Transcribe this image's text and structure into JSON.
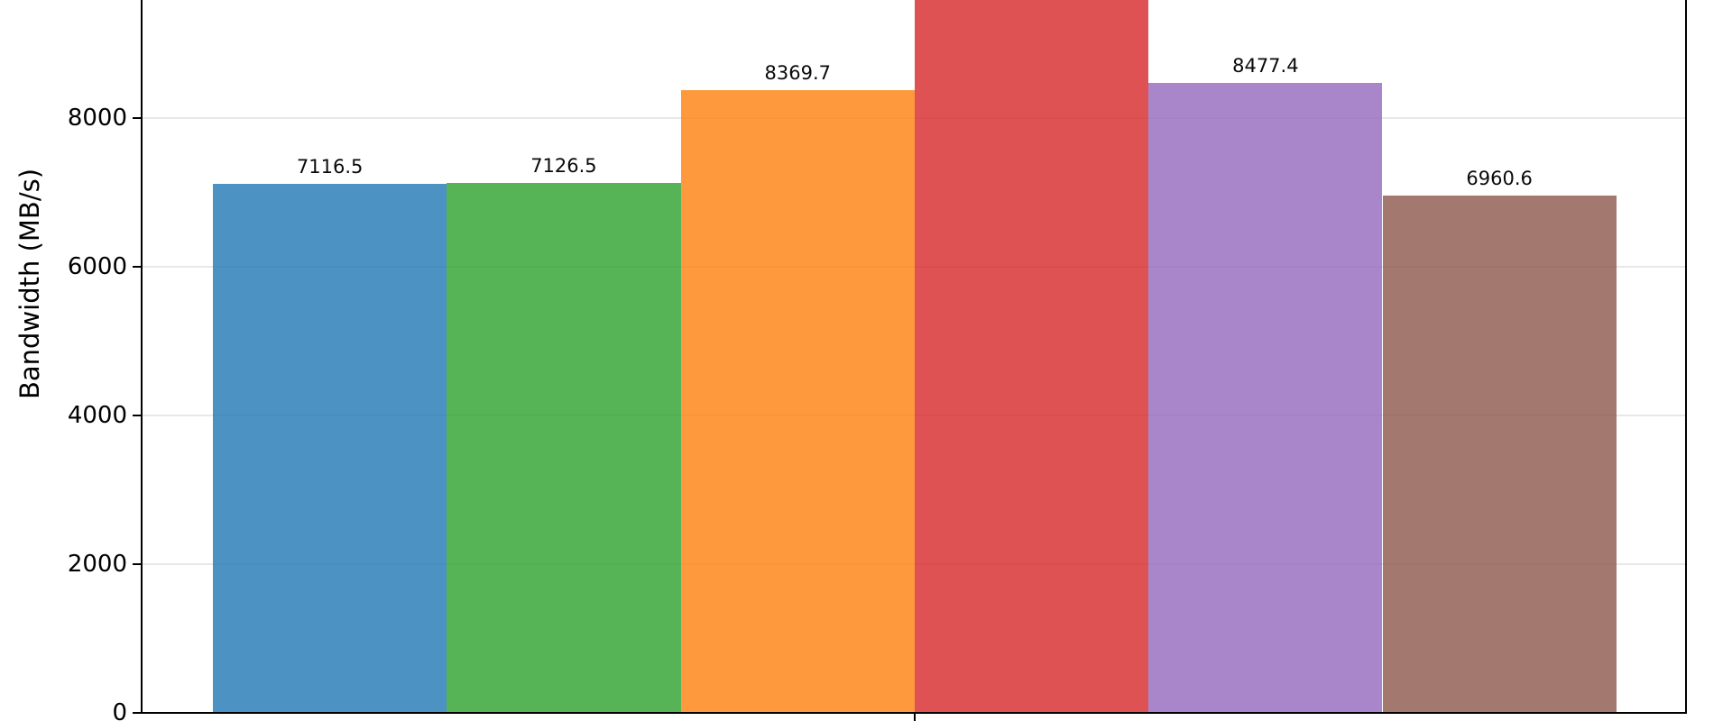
{
  "chart_data": {
    "type": "bar",
    "title": "",
    "xlabel": "",
    "ylabel": "Bandwidth (MB/s)",
    "grid": "horizontal",
    "legend_position": "none",
    "yticks": [
      0,
      2000,
      4000,
      6000,
      8000
    ],
    "ytick_labels": [
      "0",
      "2000",
      "4000",
      "6000",
      "8000"
    ],
    "ylim_visible": [
      0,
      9590
    ],
    "axis_color": "#000000",
    "gridline_color": "#e8e8e8",
    "x_tick_labels_visible": false,
    "bars": [
      {
        "value": 7116.5,
        "value_label": "7116.5",
        "color_hex": "#4692c3",
        "fill_rgba": "rgba(31,119,180,0.8)",
        "clipped_at_top": false
      },
      {
        "value": 7126.5,
        "value_label": "7126.5",
        "color_hex": "#56b356",
        "fill_rgba": "rgba(44,160,44,0.8)",
        "clipped_at_top": false
      },
      {
        "value": 8369.7,
        "value_label": "8369.7",
        "color_hex": "#ff993e",
        "fill_rgba": "rgba(255,127,14,0.8)",
        "clipped_at_top": false
      },
      {
        "value": null,
        "value_label": "",
        "color_hex": "#de5253",
        "fill_rgba": "rgba(214,39,40,0.8)",
        "clipped_at_top": true
      },
      {
        "value": 8477.4,
        "value_label": "8477.4",
        "color_hex": "#a985ca",
        "fill_rgba": "rgba(148,103,189,0.8)",
        "clipped_at_top": false
      },
      {
        "value": 6960.6,
        "value_label": "6960.6",
        "color_hex": "#a3786f",
        "fill_rgba": "rgba(140,86,75,0.8)",
        "clipped_at_top": false
      }
    ]
  }
}
